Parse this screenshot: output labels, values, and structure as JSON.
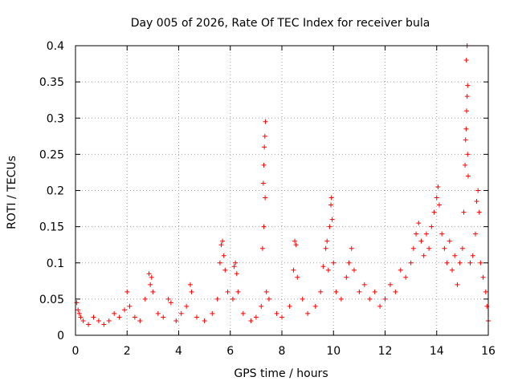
{
  "chart_data": {
    "type": "scatter",
    "title": "Day 005 of 2026, Rate Of TEC Index for receiver bula",
    "xlabel": "GPS time / hours",
    "ylabel": "ROTI / TECUs",
    "xlim": [
      0,
      16
    ],
    "ylim": [
      0,
      0.4
    ],
    "x_ticks": [
      "0",
      "2",
      "4",
      "6",
      "8",
      "10",
      "12",
      "14",
      "16"
    ],
    "y_ticks": [
      "0",
      "0.05",
      "0.1",
      "0.15",
      "0.2",
      "0.25",
      "0.3",
      "0.35",
      "0.4"
    ],
    "x_tick_values": [
      0,
      2,
      4,
      6,
      8,
      10,
      12,
      14,
      16
    ],
    "y_tick_values": [
      0,
      0.05,
      0.1,
      0.15,
      0.2,
      0.25,
      0.3,
      0.35,
      0.4
    ],
    "grid": true,
    "marker": "+",
    "color": "#ff0000",
    "series": [
      {
        "name": "ROTI",
        "points": [
          [
            0.05,
            0.045
          ],
          [
            0.1,
            0.035
          ],
          [
            0.15,
            0.03
          ],
          [
            0.2,
            0.025
          ],
          [
            0.3,
            0.02
          ],
          [
            0.5,
            0.015
          ],
          [
            0.7,
            0.025
          ],
          [
            0.9,
            0.02
          ],
          [
            1.1,
            0.015
          ],
          [
            1.3,
            0.02
          ],
          [
            1.5,
            0.03
          ],
          [
            1.7,
            0.025
          ],
          [
            1.9,
            0.035
          ],
          [
            2.0,
            0.06
          ],
          [
            2.1,
            0.04
          ],
          [
            2.3,
            0.025
          ],
          [
            2.5,
            0.02
          ],
          [
            2.7,
            0.05
          ],
          [
            2.85,
            0.085
          ],
          [
            2.9,
            0.07
          ],
          [
            2.95,
            0.08
          ],
          [
            3.0,
            0.06
          ],
          [
            3.2,
            0.03
          ],
          [
            3.4,
            0.025
          ],
          [
            3.6,
            0.05
          ],
          [
            3.7,
            0.045
          ],
          [
            3.9,
            0.02
          ],
          [
            4.1,
            0.03
          ],
          [
            4.3,
            0.04
          ],
          [
            4.45,
            0.07
          ],
          [
            4.5,
            0.06
          ],
          [
            4.7,
            0.025
          ],
          [
            5.0,
            0.02
          ],
          [
            5.3,
            0.03
          ],
          [
            5.5,
            0.05
          ],
          [
            5.6,
            0.1
          ],
          [
            5.65,
            0.125
          ],
          [
            5.7,
            0.13
          ],
          [
            5.75,
            0.11
          ],
          [
            5.8,
            0.09
          ],
          [
            5.9,
            0.06
          ],
          [
            6.1,
            0.05
          ],
          [
            6.15,
            0.095
          ],
          [
            6.2,
            0.1
          ],
          [
            6.25,
            0.085
          ],
          [
            6.3,
            0.06
          ],
          [
            6.5,
            0.03
          ],
          [
            6.8,
            0.02
          ],
          [
            7.0,
            0.025
          ],
          [
            7.2,
            0.04
          ],
          [
            7.25,
            0.12
          ],
          [
            7.28,
            0.21
          ],
          [
            7.3,
            0.235
          ],
          [
            7.32,
            0.26
          ],
          [
            7.34,
            0.275
          ],
          [
            7.36,
            0.295
          ],
          [
            7.3,
            0.15
          ],
          [
            7.35,
            0.19
          ],
          [
            7.4,
            0.06
          ],
          [
            7.5,
            0.05
          ],
          [
            7.8,
            0.03
          ],
          [
            8.0,
            0.025
          ],
          [
            8.3,
            0.04
          ],
          [
            8.45,
            0.09
          ],
          [
            8.5,
            0.13
          ],
          [
            8.55,
            0.125
          ],
          [
            8.6,
            0.08
          ],
          [
            8.8,
            0.05
          ],
          [
            9.0,
            0.03
          ],
          [
            9.3,
            0.04
          ],
          [
            9.5,
            0.06
          ],
          [
            9.6,
            0.095
          ],
          [
            9.7,
            0.12
          ],
          [
            9.75,
            0.13
          ],
          [
            9.8,
            0.09
          ],
          [
            9.85,
            0.15
          ],
          [
            9.9,
            0.18
          ],
          [
            9.92,
            0.19
          ],
          [
            9.95,
            0.16
          ],
          [
            10.0,
            0.1
          ],
          [
            10.1,
            0.06
          ],
          [
            10.3,
            0.05
          ],
          [
            10.5,
            0.08
          ],
          [
            10.6,
            0.1
          ],
          [
            10.7,
            0.12
          ],
          [
            10.8,
            0.09
          ],
          [
            11.0,
            0.06
          ],
          [
            11.2,
            0.07
          ],
          [
            11.4,
            0.05
          ],
          [
            11.6,
            0.06
          ],
          [
            11.8,
            0.04
          ],
          [
            12.0,
            0.05
          ],
          [
            12.2,
            0.07
          ],
          [
            12.4,
            0.06
          ],
          [
            12.6,
            0.09
          ],
          [
            12.8,
            0.08
          ],
          [
            13.0,
            0.1
          ],
          [
            13.1,
            0.12
          ],
          [
            13.2,
            0.14
          ],
          [
            13.3,
            0.155
          ],
          [
            13.4,
            0.13
          ],
          [
            13.5,
            0.11
          ],
          [
            13.6,
            0.14
          ],
          [
            13.7,
            0.12
          ],
          [
            13.8,
            0.15
          ],
          [
            13.9,
            0.17
          ],
          [
            14.0,
            0.19
          ],
          [
            14.05,
            0.205
          ],
          [
            14.1,
            0.18
          ],
          [
            14.2,
            0.14
          ],
          [
            14.3,
            0.12
          ],
          [
            14.4,
            0.1
          ],
          [
            14.5,
            0.13
          ],
          [
            14.6,
            0.09
          ],
          [
            14.7,
            0.11
          ],
          [
            14.8,
            0.07
          ],
          [
            14.9,
            0.1
          ],
          [
            15.0,
            0.12
          ],
          [
            15.05,
            0.17
          ],
          [
            15.1,
            0.235
          ],
          [
            15.12,
            0.27
          ],
          [
            15.14,
            0.285
          ],
          [
            15.16,
            0.31
          ],
          [
            15.18,
            0.33
          ],
          [
            15.2,
            0.345
          ],
          [
            15.15,
            0.38
          ],
          [
            15.18,
            0.4
          ],
          [
            15.2,
            0.25
          ],
          [
            15.22,
            0.22
          ],
          [
            15.3,
            0.1
          ],
          [
            15.4,
            0.11
          ],
          [
            15.5,
            0.14
          ],
          [
            15.55,
            0.185
          ],
          [
            15.6,
            0.2
          ],
          [
            15.65,
            0.17
          ],
          [
            15.7,
            0.1
          ],
          [
            15.8,
            0.08
          ],
          [
            15.9,
            0.06
          ],
          [
            15.95,
            0.04
          ],
          [
            16.0,
            0.02
          ]
        ]
      }
    ]
  }
}
